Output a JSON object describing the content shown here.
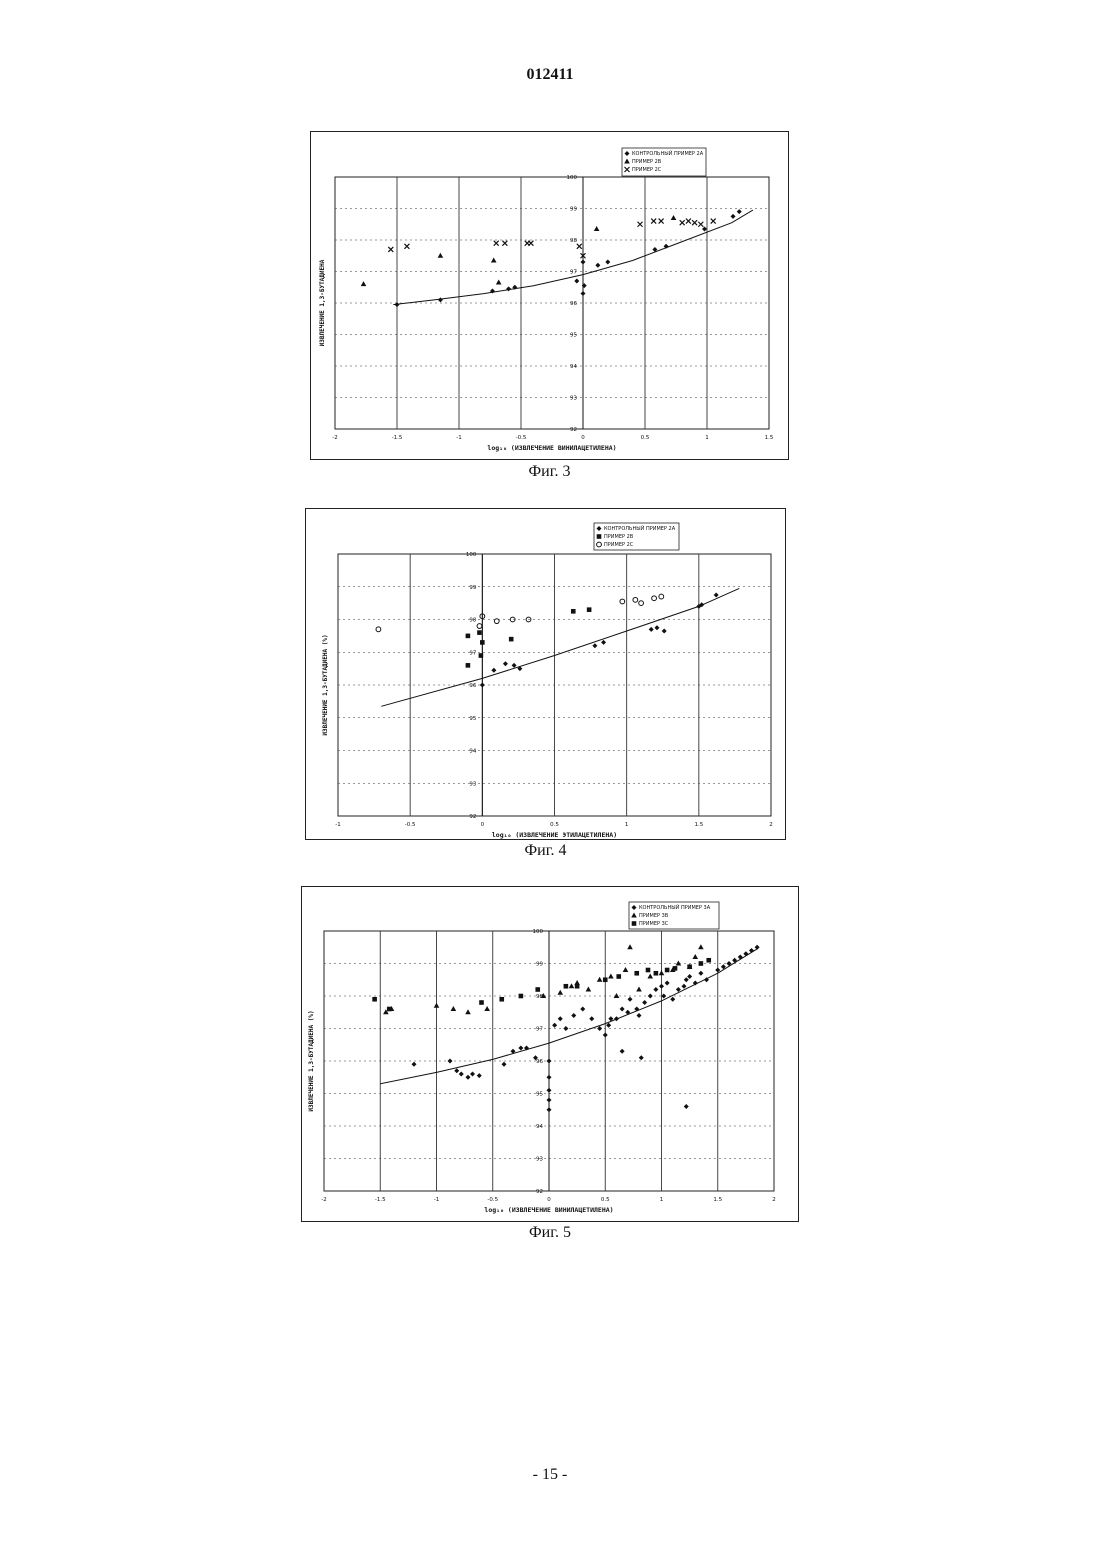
{
  "page": {
    "doc_number": "012411",
    "page_number": "- 15 -"
  },
  "colors": {
    "ink": "#111111",
    "grid": "#333333",
    "frame": "#222222"
  },
  "chart_data": [
    {
      "id": "fig3",
      "caption": "Фиг. 3",
      "type": "scatter",
      "xlabel": "log₁₀ (ИЗВЛЕЧЕНИЕ ВИНИЛАЦЕТИЛЕНА)",
      "ylabel": "ИЗВЛЕЧЕНИЕ 1,3-БУТАДИЕНА",
      "xlim": [
        -2,
        1.5
      ],
      "ylim": [
        92,
        100
      ],
      "xticks": [
        -2,
        -1.5,
        -1,
        -0.5,
        0,
        0.5,
        1,
        1.5
      ],
      "xtick_labels": [
        "-2",
        "-1.5",
        "-1",
        "-0.5",
        "0",
        "0.5",
        "1",
        "1.5"
      ],
      "yticks": [
        92,
        93,
        94,
        95,
        96,
        97,
        98,
        99,
        100
      ],
      "ytick_labels": [
        "92",
        "93",
        "94",
        "95",
        "96",
        "97",
        "98",
        "99",
        "100"
      ],
      "grid": true,
      "legend_position": "top-right",
      "legend": [
        "КОНТРОЛЬНЫЙ ПРИМЕР 2А",
        "ПРИМЕР 2В",
        "ПРИМЕР 2С"
      ],
      "trendline": [
        [
          -1.53,
          95.95
        ],
        [
          -1.2,
          96.1
        ],
        [
          -0.8,
          96.3
        ],
        [
          -0.4,
          96.55
        ],
        [
          0,
          96.9
        ],
        [
          0.4,
          97.35
        ],
        [
          0.8,
          97.95
        ],
        [
          1.2,
          98.55
        ],
        [
          1.37,
          98.95
        ]
      ],
      "series": [
        {
          "name": "КОНТРОЛЬНЫЙ ПРИМЕР 2А",
          "marker": "diamond",
          "x": [
            -1.5,
            -1.15,
            -0.73,
            -0.6,
            -0.55,
            -0.05,
            0,
            0.01,
            0,
            0.12,
            0.2,
            0.58,
            0.67,
            0.98,
            1.21,
            1.26
          ],
          "y": [
            95.95,
            96.1,
            96.38,
            96.45,
            96.5,
            96.7,
            96.3,
            96.55,
            97.3,
            97.2,
            97.3,
            97.7,
            97.8,
            98.35,
            98.75,
            98.9
          ]
        },
        {
          "name": "ПРИМЕР 2В",
          "marker": "triangle",
          "x": [
            -1.77,
            -1.15,
            -0.72,
            -0.68,
            0.11,
            0.73
          ],
          "y": [
            96.6,
            97.5,
            97.35,
            96.65,
            98.35,
            98.7
          ]
        },
        {
          "name": "ПРИМЕР 2С",
          "marker": "x",
          "x": [
            -1.55,
            -1.42,
            -0.7,
            -0.63,
            -0.45,
            -0.42,
            -0.03,
            0,
            0.46,
            0.57,
            0.63,
            0.8,
            0.85,
            0.9,
            0.95,
            1.05
          ],
          "y": [
            97.7,
            97.8,
            97.9,
            97.9,
            97.9,
            97.9,
            97.8,
            97.5,
            98.5,
            98.6,
            98.6,
            98.55,
            98.6,
            98.55,
            98.5,
            98.6
          ]
        }
      ]
    },
    {
      "id": "fig4",
      "caption": "Фиг. 4",
      "type": "scatter",
      "xlabel": "log₁₀ (ИЗВЛЕЧЕНИЕ ЭТИЛАЦЕТИЛЕНА)",
      "ylabel": "ИЗВЛЕЧЕНИЕ 1,3-БУТАДИЕНА (%)",
      "xlim": [
        -1,
        2
      ],
      "ylim": [
        92,
        100
      ],
      "xticks": [
        -1,
        -0.5,
        0,
        0.5,
        1,
        1.5,
        2
      ],
      "xtick_labels": [
        "-1",
        "-0.5",
        "0",
        "0.5",
        "1",
        "1.5",
        "2"
      ],
      "yticks": [
        92,
        93,
        94,
        95,
        96,
        97,
        98,
        99,
        100
      ],
      "ytick_labels": [
        "92",
        "93",
        "94",
        "95",
        "96",
        "97",
        "98",
        "99",
        "100"
      ],
      "grid": true,
      "legend_position": "top-right",
      "legend": [
        "КОНТРОЛЬНЫЙ ПРИМЕР 2А",
        "ПРИМЕР 2В",
        "ПРИМЕР 2С"
      ],
      "trendline": [
        [
          -0.7,
          95.35
        ],
        [
          0,
          96.2
        ],
        [
          0.5,
          96.9
        ],
        [
          1,
          97.65
        ],
        [
          1.5,
          98.4
        ],
        [
          1.78,
          98.95
        ]
      ],
      "series": [
        {
          "name": "КОНТРОЛЬНЫЙ ПРИМЕР 2А",
          "marker": "diamond",
          "x": [
            0,
            0.08,
            0.16,
            0.22,
            0.26,
            0.78,
            0.84,
            1.17,
            1.21,
            1.26,
            1.5,
            1.52,
            1.62
          ],
          "y": [
            96.0,
            96.45,
            96.65,
            96.6,
            96.5,
            97.2,
            97.3,
            97.7,
            97.75,
            97.65,
            98.4,
            98.45,
            98.75
          ]
        },
        {
          "name": "ПРИМЕР 2В",
          "marker": "square",
          "x": [
            -0.1,
            -0.1,
            -0.02,
            -0.01,
            0,
            0.2,
            0.63,
            0.74
          ],
          "y": [
            96.6,
            97.5,
            97.6,
            96.9,
            97.3,
            97.4,
            98.25,
            98.3
          ]
        },
        {
          "name": "ПРИМЕР 2С",
          "marker": "circle",
          "x": [
            -0.72,
            -0.02,
            0,
            0.1,
            0.21,
            0.32,
            0.97,
            1.06,
            1.1,
            1.19,
            1.24
          ],
          "y": [
            97.7,
            97.8,
            98.1,
            97.95,
            98.0,
            98.0,
            98.55,
            98.6,
            98.5,
            98.65,
            98.7
          ]
        }
      ]
    },
    {
      "id": "fig5",
      "caption": "Фиг. 5",
      "type": "scatter",
      "xlabel": "log₁₀ (ИЗВЛЕЧЕНИЕ ВИНИЛАЦЕТИЛЕНА)",
      "ylabel": "ИЗВЛЕЧЕНИЕ 1,3-БУТАДИЕНА (%)",
      "xlim": [
        -2,
        2
      ],
      "ylim": [
        92,
        100
      ],
      "xticks": [
        -2,
        -1.5,
        -1,
        -0.5,
        0,
        0.5,
        1,
        1.5,
        2
      ],
      "xtick_labels": [
        "-2",
        "-1.5",
        "-1",
        "-0.5",
        "0",
        "0.5",
        "1",
        "1.5",
        "2"
      ],
      "yticks": [
        92,
        93,
        94,
        95,
        96,
        97,
        98,
        99,
        100
      ],
      "ytick_labels": [
        "92",
        "93",
        "94",
        "95",
        "96",
        "97",
        "98",
        "99",
        "100"
      ],
      "grid": true,
      "legend_position": "top-right",
      "legend": [
        "КОНТРОЛЬНЫЙ ПРИМЕР 3А",
        "ПРИМЕР 3В",
        "ПРИМЕР 3С"
      ],
      "trendline": [
        [
          -1.5,
          95.3
        ],
        [
          -1,
          95.65
        ],
        [
          -0.5,
          96.05
        ],
        [
          0,
          96.55
        ],
        [
          0.5,
          97.15
        ],
        [
          1,
          97.85
        ],
        [
          1.5,
          98.7
        ],
        [
          1.85,
          99.45
        ]
      ],
      "series": [
        {
          "name": "КОНТРОЛЬНЫЙ ПРИМЕР 3А",
          "marker": "diamond",
          "x": [
            -1.2,
            -0.88,
            -0.82,
            -0.78,
            -0.72,
            -0.68,
            -0.62,
            -0.4,
            -0.32,
            -0.25,
            -0.2,
            -0.12,
            0,
            0,
            0,
            0,
            0,
            0.05,
            0.1,
            0.15,
            0.22,
            0.3,
            0.38,
            0.45,
            0.5,
            0.53,
            0.55,
            0.6,
            0.65,
            0.7,
            0.72,
            0.78,
            0.8,
            0.85,
            0.9,
            0.95,
            1.0,
            1.02,
            1.05,
            1.1,
            1.15,
            1.2,
            1.22,
            1.25,
            1.3,
            1.35,
            1.4,
            1.5,
            1.55,
            1.6,
            1.65,
            1.7,
            1.75,
            1.8,
            1.85,
            0.65,
            0.82,
            1.22
          ],
          "y": [
            95.9,
            96.0,
            95.7,
            95.6,
            95.5,
            95.6,
            95.55,
            95.9,
            96.3,
            96.4,
            96.4,
            96.1,
            96.0,
            95.5,
            95.1,
            94.8,
            94.5,
            97.1,
            97.3,
            97.0,
            97.4,
            97.6,
            97.3,
            97.0,
            96.8,
            97.1,
            97.3,
            97.3,
            97.6,
            97.5,
            97.9,
            97.6,
            97.4,
            97.8,
            98.0,
            98.2,
            98.3,
            98.0,
            98.4,
            97.9,
            98.2,
            98.3,
            98.5,
            98.6,
            98.4,
            98.7,
            98.5,
            98.8,
            98.9,
            99.0,
            99.1,
            99.2,
            99.3,
            99.4,
            99.5,
            96.3,
            96.1,
            94.6
          ]
        },
        {
          "name": "ПРИМЕР 3В",
          "marker": "triangle",
          "x": [
            -1.45,
            -1.4,
            -1.0,
            -0.85,
            -0.72,
            -0.55,
            -0.05,
            0.1,
            0.2,
            0.25,
            0.35,
            0.45,
            0.55,
            0.6,
            0.68,
            0.72,
            0.8,
            0.9,
            1.0,
            1.1,
            1.15,
            1.25,
            1.3,
            1.35
          ],
          "y": [
            97.5,
            97.6,
            97.7,
            97.6,
            97.5,
            97.6,
            98.0,
            98.1,
            98.3,
            98.4,
            98.2,
            98.5,
            98.6,
            98.0,
            98.8,
            99.5,
            98.2,
            98.6,
            98.7,
            98.8,
            99.0,
            98.9,
            99.2,
            99.5
          ]
        },
        {
          "name": "ПРИМЕР 3С",
          "marker": "square",
          "x": [
            -1.55,
            -1.42,
            -0.6,
            -0.42,
            -0.25,
            -0.1,
            0.15,
            0.25,
            0.5,
            0.62,
            0.78,
            0.88,
            0.95,
            1.05,
            1.12,
            1.25,
            1.35,
            1.42
          ],
          "y": [
            97.9,
            97.6,
            97.8,
            97.9,
            98.0,
            98.2,
            98.3,
            98.3,
            98.5,
            98.6,
            98.7,
            98.8,
            98.7,
            98.8,
            98.85,
            98.9,
            99.0,
            99.1
          ]
        }
      ]
    }
  ]
}
